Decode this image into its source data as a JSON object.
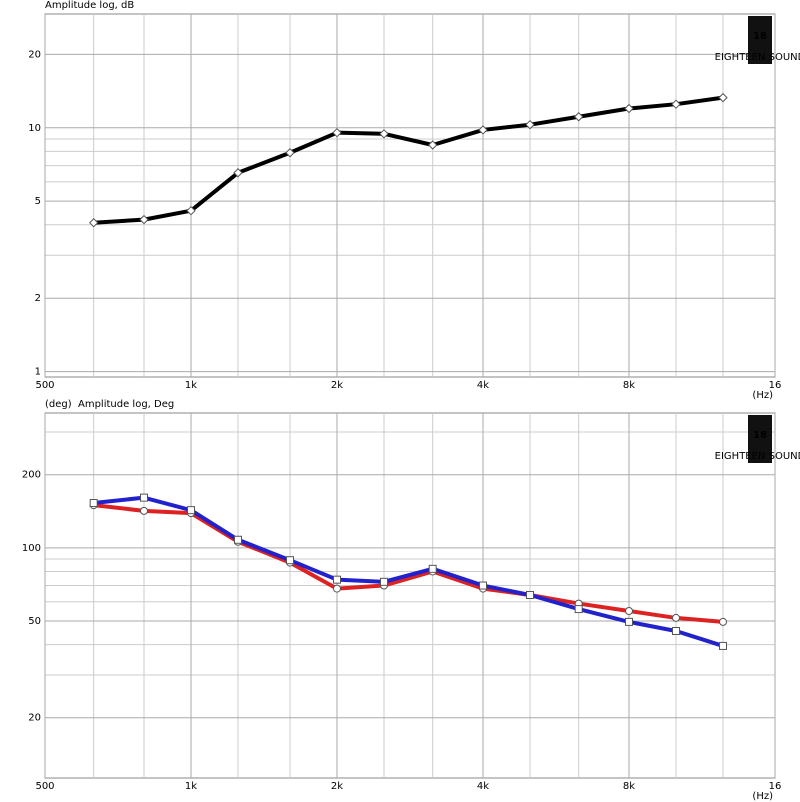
{
  "chart_data": [
    {
      "type": "line",
      "title": "Amplitude log, dB",
      "x_unit": "(Hz)",
      "xlog": true,
      "ylog": true,
      "grid": true,
      "logo": {
        "number": "18",
        "text": "EIGHTEEN SOUND"
      },
      "x": [
        630,
        800,
        1000,
        1250,
        1600,
        2000,
        2500,
        3150,
        4000,
        5000,
        6300,
        8000,
        10000,
        12500
      ],
      "series": [
        {
          "color": "#000000",
          "marker": "diamond",
          "values": [
            4.08,
            4.2,
            4.57,
            6.54,
            7.9,
            9.55,
            9.45,
            8.5,
            9.8,
            10.3,
            11.1,
            12.0,
            12.5,
            13.3
          ]
        }
      ],
      "xlim": [
        500,
        16000
      ],
      "ylim": [
        0.95,
        29.3
      ],
      "xticks": [
        500,
        {
          "value": 1000,
          "label": "1k"
        },
        {
          "value": 2000,
          "label": "2k"
        },
        {
          "value": 4000,
          "label": "4k"
        },
        {
          "value": 8000,
          "label": "8k"
        },
        {
          "value": 16000,
          "label": "16"
        }
      ],
      "xminorticks": [
        630,
        800,
        1250,
        1600,
        2500,
        3150,
        5000,
        6300,
        10000,
        12500
      ],
      "yticks": [
        1,
        2,
        5,
        10,
        20
      ],
      "yminorticks": [
        3,
        4,
        6,
        7,
        8,
        9
      ]
    },
    {
      "type": "line",
      "title": "Amplitude log, Deg",
      "y_unit": "(deg)",
      "x_unit": "(Hz)",
      "xlog": true,
      "ylog": true,
      "grid": true,
      "logo": {
        "number": "18",
        "text": "EIGHTEEN SOUND"
      },
      "x": [
        630,
        800,
        1000,
        1250,
        1600,
        2000,
        2500,
        3150,
        4000,
        5000,
        6300,
        8000,
        10000,
        12500
      ],
      "series": [
        {
          "color": "#dd2222",
          "marker": "circle",
          "values": [
            150,
            142,
            139,
            106,
            87,
            68,
            70,
            80,
            68,
            64,
            59,
            55,
            51.5,
            49.6
          ]
        },
        {
          "color": "#2222cc",
          "marker": "square",
          "values": [
            153,
            161,
            143,
            108,
            89,
            74,
            72.5,
            82,
            70,
            64,
            56,
            49.6,
            45.5,
            39.5
          ]
        }
      ],
      "xlim": [
        500,
        16000
      ],
      "ylim": [
        11.3,
        359
      ],
      "xticks": [
        500,
        {
          "value": 1000,
          "label": "1k"
        },
        {
          "value": 2000,
          "label": "2k"
        },
        {
          "value": 4000,
          "label": "4k"
        },
        {
          "value": 8000,
          "label": "8k"
        },
        {
          "value": 16000,
          "label": "16"
        }
      ],
      "xminorticks": [
        630,
        800,
        1250,
        1600,
        2500,
        3150,
        5000,
        6300,
        10000,
        12500
      ],
      "yticks": [
        20,
        50,
        100,
        200
      ],
      "yminorticks": [
        30,
        40,
        60,
        70,
        80,
        90,
        300
      ]
    }
  ]
}
